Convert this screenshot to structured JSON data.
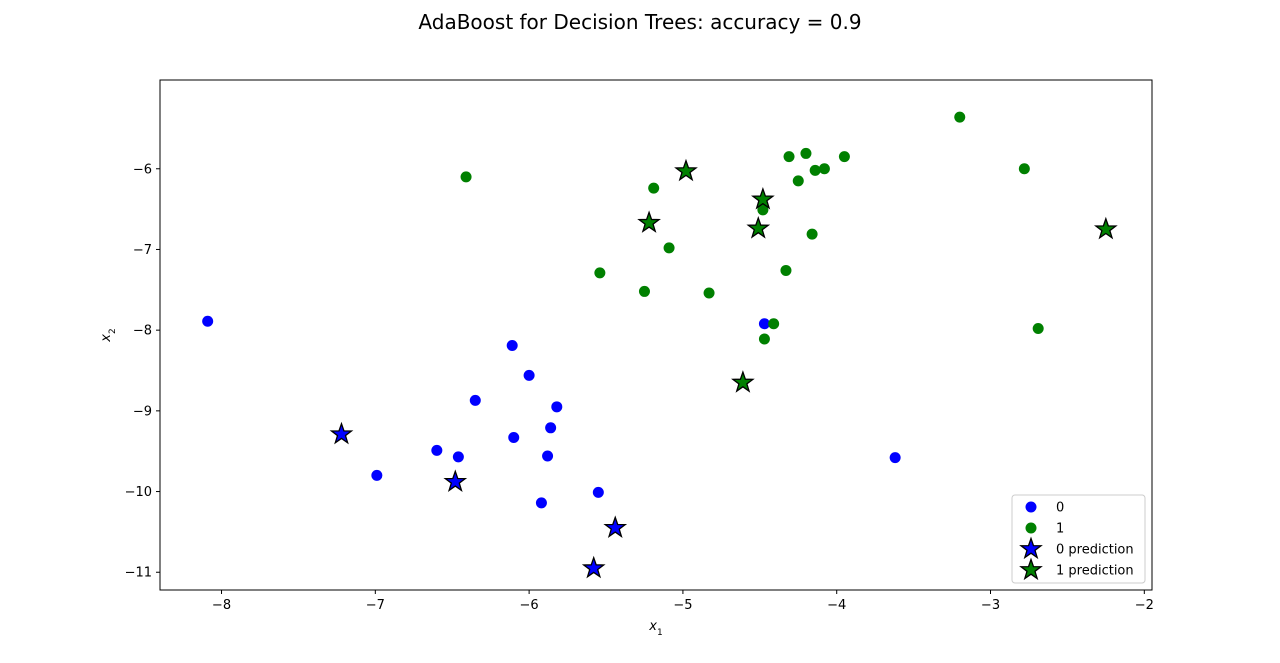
{
  "chart_data": {
    "type": "scatter",
    "title": "AdaBoost for Decision Trees: accuracy = 0.9",
    "xlabel": "x",
    "xlabel_sub": "1",
    "ylabel": "x",
    "ylabel_sub": "2",
    "xlim": [
      -8.4,
      -1.95
    ],
    "ylim": [
      -11.22,
      -4.9
    ],
    "xticks": [
      -8,
      -7,
      -6,
      -5,
      -4,
      -3,
      -2
    ],
    "yticks": [
      -6,
      -7,
      -8,
      -9,
      -10,
      -11
    ],
    "xtick_labels": [
      "−8",
      "−7",
      "−6",
      "−5",
      "−4",
      "−3",
      "−2"
    ],
    "ytick_labels": [
      "−6",
      "−7",
      "−8",
      "−9",
      "−10",
      "−11"
    ],
    "grid": false,
    "legend_position": "lower-right",
    "colors": {
      "class_0": "#0000ff",
      "class_1": "#008000"
    },
    "series": [
      {
        "name": "0",
        "marker": "circle",
        "color": "#0000ff",
        "points": [
          [
            -8.09,
            -7.89
          ],
          [
            -6.11,
            -8.19
          ],
          [
            -6.0,
            -8.56
          ],
          [
            -6.35,
            -8.87
          ],
          [
            -5.82,
            -8.95
          ],
          [
            -5.86,
            -9.21
          ],
          [
            -6.1,
            -9.33
          ],
          [
            -6.6,
            -9.49
          ],
          [
            -6.46,
            -9.57
          ],
          [
            -5.88,
            -9.56
          ],
          [
            -6.99,
            -9.8
          ],
          [
            -5.55,
            -10.01
          ],
          [
            -5.92,
            -10.14
          ],
          [
            -4.47,
            -7.92
          ],
          [
            -3.62,
            -9.58
          ]
        ]
      },
      {
        "name": "1",
        "marker": "circle",
        "color": "#008000",
        "points": [
          [
            -6.41,
            -6.1
          ],
          [
            -5.19,
            -6.24
          ],
          [
            -5.09,
            -6.98
          ],
          [
            -5.54,
            -7.29
          ],
          [
            -5.25,
            -7.52
          ],
          [
            -4.83,
            -7.54
          ],
          [
            -4.31,
            -5.85
          ],
          [
            -4.2,
            -5.81
          ],
          [
            -4.25,
            -6.15
          ],
          [
            -4.14,
            -6.02
          ],
          [
            -4.08,
            -6.0
          ],
          [
            -3.95,
            -5.85
          ],
          [
            -4.48,
            -6.51
          ],
          [
            -4.16,
            -6.81
          ],
          [
            -4.33,
            -7.26
          ],
          [
            -4.41,
            -7.92
          ],
          [
            -4.47,
            -8.11
          ],
          [
            -3.2,
            -5.36
          ],
          [
            -2.78,
            -6.0
          ],
          [
            -2.69,
            -7.98
          ]
        ]
      },
      {
        "name": "0 prediction",
        "marker": "star",
        "color": "#0000ff",
        "points": [
          [
            -7.22,
            -9.29
          ],
          [
            -6.48,
            -9.88
          ],
          [
            -5.44,
            -10.45
          ],
          [
            -5.58,
            -10.95
          ]
        ]
      },
      {
        "name": "1 prediction",
        "marker": "star",
        "color": "#008000",
        "points": [
          [
            -4.98,
            -6.03
          ],
          [
            -5.22,
            -6.67
          ],
          [
            -4.48,
            -6.38
          ],
          [
            -4.51,
            -6.74
          ],
          [
            -4.61,
            -8.65
          ],
          [
            -2.25,
            -6.75
          ]
        ]
      }
    ]
  }
}
